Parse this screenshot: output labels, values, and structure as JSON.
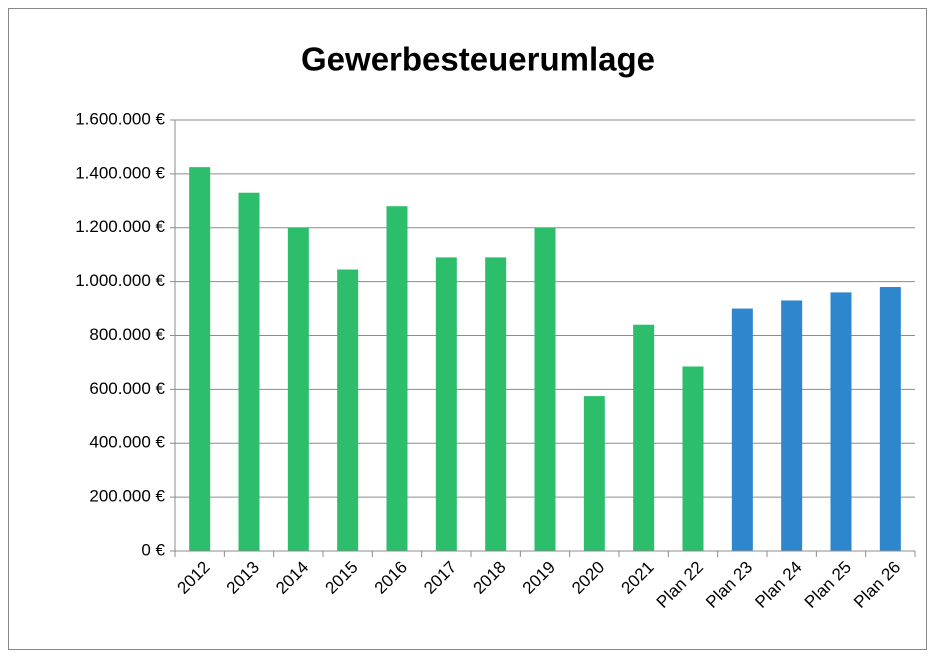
{
  "chart_data": {
    "type": "bar",
    "title": "Gewerbesteuerumlage",
    "categories": [
      "2012",
      "2013",
      "2014",
      "2015",
      "2016",
      "2017",
      "2018",
      "2019",
      "2020",
      "2021",
      "Plan 22",
      "Plan 23",
      "Plan 24",
      "Plan 25",
      "Plan 26"
    ],
    "values": [
      1425000,
      1330000,
      1200000,
      1045000,
      1280000,
      1090000,
      1090000,
      1200000,
      575000,
      840000,
      685000,
      900000,
      930000,
      960000,
      980000
    ],
    "colors": [
      "#2dbe6c",
      "#2dbe6c",
      "#2dbe6c",
      "#2dbe6c",
      "#2dbe6c",
      "#2dbe6c",
      "#2dbe6c",
      "#2dbe6c",
      "#2dbe6c",
      "#2dbe6c",
      "#2dbe6c",
      "#2e86cc",
      "#2e86cc",
      "#2e86cc",
      "#2e86cc"
    ],
    "ylim": [
      0,
      1600000
    ],
    "yticks": [
      {
        "value": 0,
        "label": "0 €"
      },
      {
        "value": 200000,
        "label": "200.000 €"
      },
      {
        "value": 400000,
        "label": "400.000 €"
      },
      {
        "value": 600000,
        "label": "600.000 €"
      },
      {
        "value": 800000,
        "label": "800.000 €"
      },
      {
        "value": 1000000,
        "label": "1.000.000 €"
      },
      {
        "value": 1200000,
        "label": "1.200.000 €"
      },
      {
        "value": 1400000,
        "label": "1.400.000 €"
      },
      {
        "value": 1600000,
        "label": "1.600.000 €"
      }
    ],
    "grid": true
  }
}
